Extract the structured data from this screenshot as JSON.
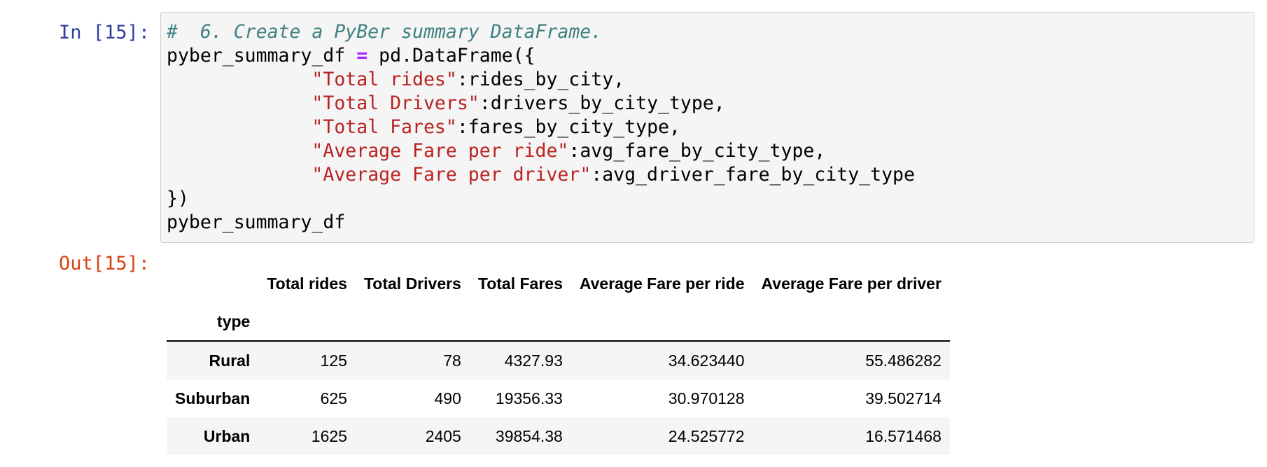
{
  "cell": {
    "input_prompt": "In [15]:",
    "output_prompt": "Out[15]:",
    "code": {
      "comment": "#  6. Create a PyBer summary DataFrame.",
      "line2_var": "pyber_summary_df ",
      "line2_op": "=",
      "line2_call": " pd.DataFrame({",
      "entries": [
        {
          "indent": "             ",
          "key": "\"Total rides\"",
          "value": ":rides_by_city,"
        },
        {
          "indent": "             ",
          "key": "\"Total Drivers\"",
          "value": ":drivers_by_city_type,"
        },
        {
          "indent": "             ",
          "key": "\"Total Fares\"",
          "value": ":fares_by_city_type,"
        },
        {
          "indent": "             ",
          "key": "\"Average Fare per ride\"",
          "value": ":avg_fare_by_city_type,"
        },
        {
          "indent": "             ",
          "key": "\"Average Fare per driver\"",
          "value": ":avg_driver_fare_by_city_type"
        }
      ],
      "close": "})",
      "last": "pyber_summary_df"
    }
  },
  "dataframe": {
    "index_name": "type",
    "columns": [
      "Total rides",
      "Total Drivers",
      "Total Fares",
      "Average Fare per ride",
      "Average Fare per driver"
    ],
    "rows": [
      {
        "index": "Rural",
        "values": [
          "125",
          "78",
          "4327.93",
          "34.623440",
          "55.486282"
        ]
      },
      {
        "index": "Suburban",
        "values": [
          "625",
          "490",
          "19356.33",
          "30.970128",
          "39.502714"
        ]
      },
      {
        "index": "Urban",
        "values": [
          "1625",
          "2405",
          "39854.38",
          "24.525772",
          "16.571468"
        ]
      }
    ]
  }
}
